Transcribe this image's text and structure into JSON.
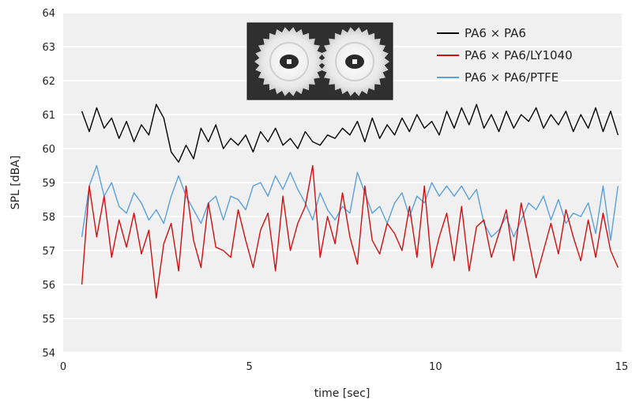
{
  "chart_data": {
    "type": "line",
    "title": "",
    "xlabel": "time [sec]",
    "ylabel": "SPL [dBA]",
    "xlim": [
      0,
      15
    ],
    "ylim": [
      54,
      64
    ],
    "xticks": [
      0,
      5,
      10,
      15
    ],
    "yticks": [
      54,
      55,
      56,
      57,
      58,
      59,
      60,
      61,
      62,
      63,
      64
    ],
    "grid": "horizontal",
    "background": "#f0f0f0",
    "legend_position": "top-right",
    "inset_image": "photo-of-two-white-gears",
    "x": [
      0.5,
      0.7,
      0.9,
      1.1,
      1.3,
      1.5,
      1.7,
      1.9,
      2.1,
      2.3,
      2.5,
      2.7,
      2.9,
      3.1,
      3.3,
      3.5,
      3.7,
      3.9,
      4.1,
      4.3,
      4.5,
      4.7,
      4.9,
      5.1,
      5.3,
      5.5,
      5.7,
      5.9,
      6.1,
      6.3,
      6.5,
      6.7,
      6.9,
      7.1,
      7.3,
      7.5,
      7.7,
      7.9,
      8.1,
      8.3,
      8.5,
      8.7,
      8.9,
      9.1,
      9.3,
      9.5,
      9.7,
      9.9,
      10.1,
      10.3,
      10.5,
      10.7,
      10.9,
      11.1,
      11.3,
      11.5,
      11.7,
      11.9,
      12.1,
      12.3,
      12.5,
      12.7,
      12.9,
      13.1,
      13.3,
      13.5,
      13.7,
      13.9,
      14.1,
      14.3,
      14.5,
      14.7,
      14.9
    ],
    "series": [
      {
        "name": "PA6 × PA6",
        "color": "#000000",
        "values": [
          61.1,
          60.5,
          61.2,
          60.6,
          60.9,
          60.3,
          60.8,
          60.2,
          60.7,
          60.4,
          61.3,
          60.9,
          59.9,
          59.6,
          60.1,
          59.7,
          60.6,
          60.2,
          60.7,
          60.0,
          60.3,
          60.1,
          60.4,
          59.9,
          60.5,
          60.2,
          60.6,
          60.1,
          60.3,
          60.0,
          60.5,
          60.2,
          60.1,
          60.4,
          60.3,
          60.6,
          60.4,
          60.8,
          60.2,
          60.9,
          60.3,
          60.7,
          60.4,
          60.9,
          60.5,
          61.0,
          60.6,
          60.8,
          60.4,
          61.1,
          60.6,
          61.2,
          60.7,
          61.3,
          60.6,
          61.0,
          60.5,
          61.1,
          60.6,
          61.0,
          60.8,
          61.2,
          60.6,
          61.0,
          60.7,
          61.1,
          60.5,
          61.0,
          60.6,
          61.2,
          60.5,
          61.1,
          60.4
        ]
      },
      {
        "name": "PA6 × PA6/LY1040",
        "color": "#d01010",
        "values": [
          56.0,
          58.9,
          57.4,
          58.6,
          56.8,
          57.9,
          57.1,
          58.1,
          56.9,
          57.6,
          55.6,
          57.2,
          57.8,
          56.4,
          58.9,
          57.3,
          56.5,
          58.4,
          57.1,
          57.0,
          56.8,
          58.2,
          57.3,
          56.5,
          57.6,
          58.1,
          56.4,
          58.6,
          57.0,
          57.8,
          58.3,
          59.5,
          56.8,
          58.0,
          57.2,
          58.7,
          57.4,
          56.6,
          58.9,
          57.3,
          56.9,
          57.8,
          57.5,
          57.0,
          58.3,
          56.8,
          58.9,
          56.5,
          57.4,
          58.1,
          56.7,
          58.3,
          56.4,
          57.7,
          57.9,
          56.8,
          57.5,
          58.2,
          56.7,
          58.4,
          57.3,
          56.2,
          57.0,
          57.8,
          56.9,
          58.2,
          57.4,
          56.7,
          57.9,
          56.8,
          58.1,
          57.0,
          56.5
        ]
      },
      {
        "name": "PA6 × PA6/PTFE",
        "color": "#5ca0dc",
        "values": [
          57.4,
          58.9,
          59.5,
          58.6,
          59.0,
          58.3,
          58.1,
          58.7,
          58.4,
          57.9,
          58.2,
          57.8,
          58.6,
          59.2,
          58.6,
          58.2,
          57.8,
          58.4,
          58.6,
          57.9,
          58.6,
          58.5,
          58.2,
          58.9,
          59.0,
          58.6,
          59.2,
          58.8,
          59.3,
          58.8,
          58.4,
          57.9,
          58.7,
          58.2,
          57.9,
          58.3,
          58.1,
          59.3,
          58.7,
          58.1,
          58.3,
          57.8,
          58.4,
          58.7,
          58.0,
          58.6,
          58.4,
          59.0,
          58.6,
          58.9,
          58.6,
          58.9,
          58.5,
          58.8,
          57.8,
          57.4,
          57.6,
          58.0,
          57.4,
          57.9,
          58.4,
          58.2,
          58.6,
          57.9,
          58.5,
          57.8,
          58.1,
          58.0,
          58.4,
          57.5,
          58.9,
          57.3,
          58.9
        ]
      }
    ]
  }
}
